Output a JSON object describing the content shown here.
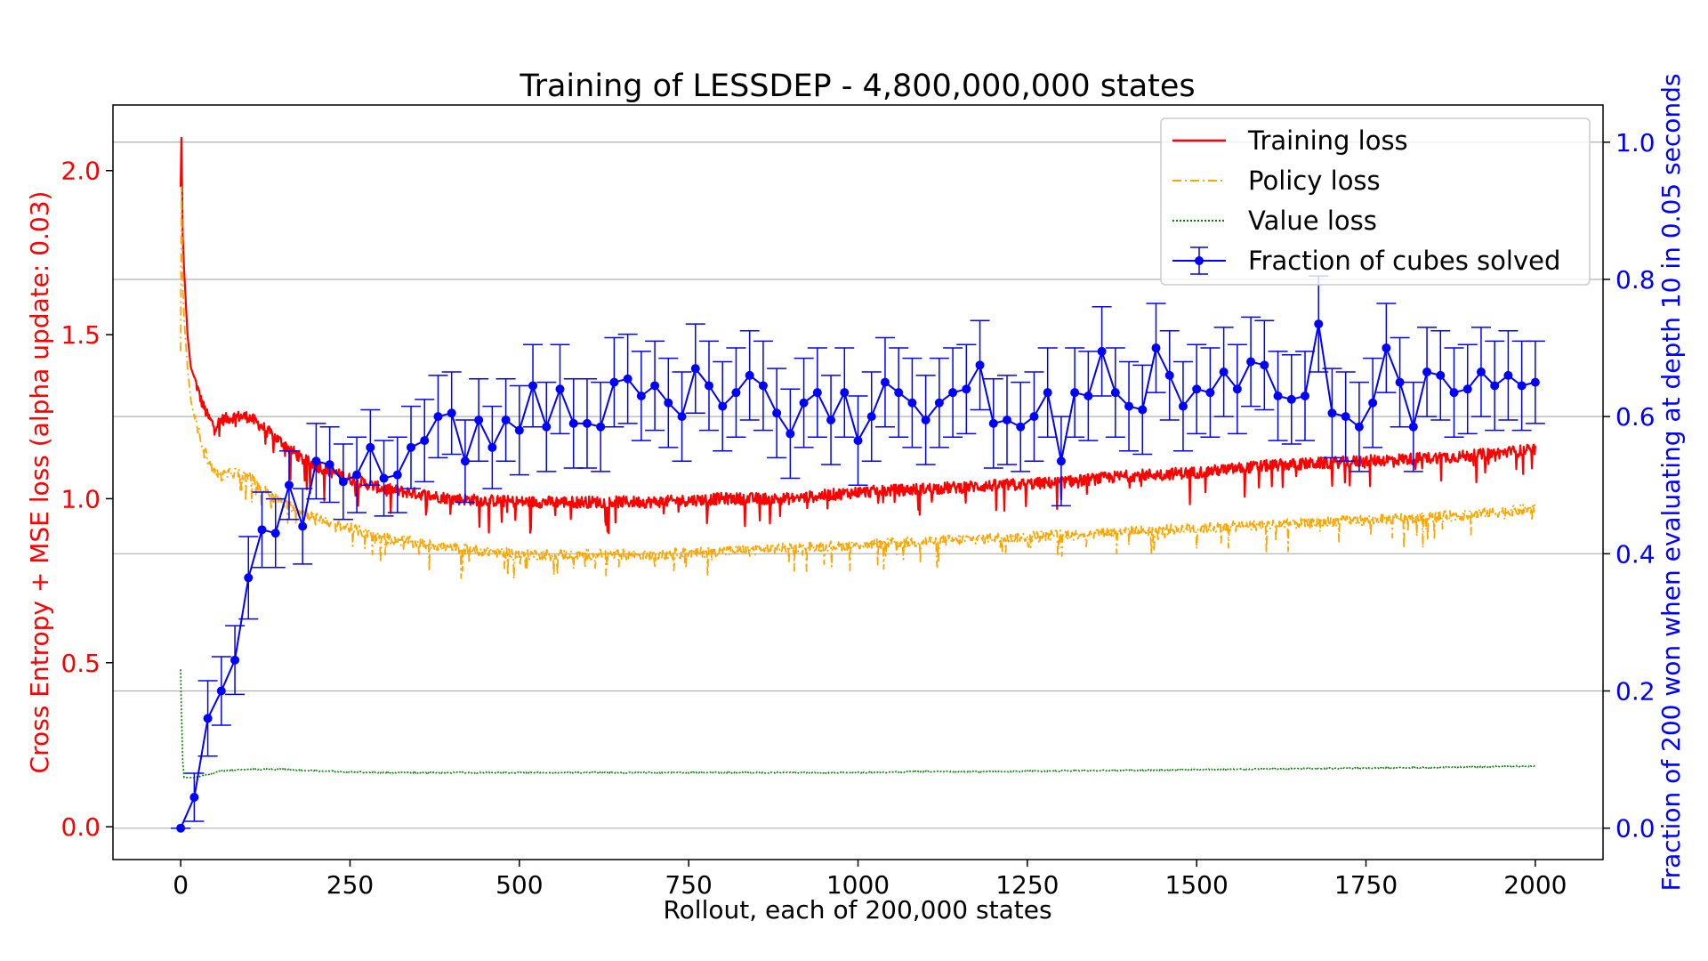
{
  "colors": {
    "training": "#ff0000",
    "policy": "#ffa500",
    "value": "#008000",
    "solved": "#0000ff",
    "grid": "#b0b0b0",
    "axis": "#000000"
  },
  "chart_data": {
    "type": "line",
    "title": "Training of LESSDEP - 4,800,000,000 states",
    "xlabel": "Rollout, each of 200,000 states",
    "ylabel_left": "Cross Entropy + MSE loss (alpha update: 0.03)",
    "ylabel_right": "Fraction of 200 won when evaluating at depth 10 in 0.05 seconds",
    "xlim": [
      -100,
      2100
    ],
    "ylim_left": [
      -0.1,
      2.2
    ],
    "ylim_right": [
      -0.0458,
      1.0542
    ],
    "xticks": [
      0,
      250,
      500,
      750,
      1000,
      1250,
      1500,
      1750,
      2000
    ],
    "xtick_labels": [
      "0",
      "250",
      "500",
      "750",
      "1000",
      "1250",
      "1500",
      "1750",
      "2000"
    ],
    "yticks_left": [
      0.0,
      0.5,
      1.0,
      1.5,
      2.0
    ],
    "ytick_labels_left": [
      "0.0",
      "0.5",
      "1.0",
      "1.5",
      "2.0"
    ],
    "yticks_right": [
      0.0,
      0.2,
      0.4,
      0.6,
      0.8,
      1.0
    ],
    "ytick_labels_right": [
      "0.0",
      "0.2",
      "0.4",
      "0.6",
      "0.8",
      "1.0"
    ],
    "grid": "horizontal (right axis)",
    "legend_position": "top-right",
    "legend": [
      "Training loss",
      "Policy loss",
      "Value loss",
      "Fraction of cubes solved"
    ],
    "loss_series": [
      {
        "name": "Training loss",
        "color": "#ff0000",
        "style": "solid",
        "x": [
          0,
          1,
          3,
          5,
          10,
          15,
          20,
          30,
          40,
          50,
          60,
          80,
          100,
          120,
          150,
          180,
          200,
          250,
          300,
          400,
          500,
          600,
          700,
          800,
          900,
          1000,
          1100,
          1200,
          1300,
          1400,
          1500,
          1600,
          1700,
          1800,
          1900,
          2000
        ],
        "y": [
          1.95,
          2.1,
          1.8,
          1.7,
          1.5,
          1.4,
          1.37,
          1.3,
          1.25,
          1.22,
          1.24,
          1.25,
          1.25,
          1.22,
          1.17,
          1.12,
          1.1,
          1.06,
          1.03,
          1.0,
          0.99,
          0.99,
          0.99,
          1.0,
          1.0,
          1.02,
          1.03,
          1.04,
          1.05,
          1.07,
          1.08,
          1.1,
          1.11,
          1.12,
          1.13,
          1.15
        ]
      },
      {
        "name": "Policy loss",
        "color": "#ffa500",
        "style": "dashdot",
        "x": [
          0,
          1,
          3,
          5,
          10,
          15,
          20,
          30,
          40,
          50,
          60,
          80,
          100,
          120,
          150,
          180,
          200,
          250,
          300,
          400,
          500,
          600,
          700,
          800,
          900,
          1000,
          1100,
          1200,
          1300,
          1400,
          1500,
          1600,
          1700,
          1800,
          1900,
          2000
        ],
        "y": [
          1.45,
          1.95,
          1.65,
          1.55,
          1.4,
          1.3,
          1.25,
          1.18,
          1.12,
          1.08,
          1.07,
          1.08,
          1.07,
          1.03,
          0.99,
          0.96,
          0.94,
          0.91,
          0.88,
          0.85,
          0.83,
          0.83,
          0.83,
          0.84,
          0.85,
          0.86,
          0.87,
          0.88,
          0.89,
          0.9,
          0.91,
          0.92,
          0.93,
          0.94,
          0.95,
          0.97
        ]
      },
      {
        "name": "Value loss",
        "color": "#008000",
        "style": "dotted",
        "x": [
          0,
          1,
          3,
          5,
          10,
          20,
          40,
          60,
          100,
          150,
          200,
          300,
          400,
          500,
          600,
          700,
          800,
          900,
          1000,
          1100,
          1200,
          1300,
          1400,
          1500,
          1600,
          1700,
          1800,
          1900,
          2000
        ],
        "y": [
          0.48,
          0.35,
          0.2,
          0.15,
          0.15,
          0.15,
          0.16,
          0.17,
          0.175,
          0.175,
          0.17,
          0.165,
          0.165,
          0.165,
          0.165,
          0.165,
          0.165,
          0.165,
          0.165,
          0.168,
          0.168,
          0.17,
          0.172,
          0.174,
          0.176,
          0.178,
          0.18,
          0.182,
          0.185
        ]
      }
    ],
    "solved_series": {
      "name": "Fraction of cubes solved",
      "color": "#0000ff",
      "x": [
        0,
        20,
        40,
        60,
        80,
        100,
        120,
        140,
        160,
        180,
        200,
        220,
        240,
        260,
        280,
        300,
        320,
        340,
        360,
        380,
        400,
        420,
        440,
        460,
        480,
        500,
        520,
        540,
        560,
        580,
        600,
        620,
        640,
        660,
        680,
        700,
        720,
        740,
        760,
        780,
        800,
        820,
        840,
        860,
        880,
        900,
        920,
        940,
        960,
        980,
        1000,
        1020,
        1040,
        1060,
        1080,
        1100,
        1120,
        1140,
        1160,
        1180,
        1200,
        1220,
        1240,
        1260,
        1280,
        1300,
        1320,
        1340,
        1360,
        1380,
        1400,
        1420,
        1440,
        1460,
        1480,
        1500,
        1520,
        1540,
        1560,
        1580,
        1600,
        1620,
        1640,
        1660,
        1680,
        1700,
        1720,
        1740,
        1760,
        1780,
        1800,
        1820,
        1840,
        1860,
        1880,
        1900,
        1920,
        1940,
        1960,
        1980,
        2000
      ],
      "y": [
        0.0,
        0.045,
        0.16,
        0.2,
        0.245,
        0.365,
        0.435,
        0.43,
        0.5,
        0.44,
        0.535,
        0.53,
        0.505,
        0.515,
        0.555,
        0.51,
        0.515,
        0.555,
        0.565,
        0.6,
        0.605,
        0.535,
        0.595,
        0.555,
        0.595,
        0.58,
        0.645,
        0.585,
        0.64,
        0.59,
        0.59,
        0.585,
        0.65,
        0.655,
        0.63,
        0.645,
        0.62,
        0.6,
        0.67,
        0.645,
        0.615,
        0.635,
        0.66,
        0.645,
        0.605,
        0.575,
        0.62,
        0.635,
        0.595,
        0.635,
        0.565,
        0.6,
        0.65,
        0.635,
        0.62,
        0.595,
        0.62,
        0.635,
        0.64,
        0.675,
        0.59,
        0.595,
        0.585,
        0.6,
        0.635,
        0.535,
        0.635,
        0.63,
        0.695,
        0.635,
        0.615,
        0.61,
        0.7,
        0.66,
        0.615,
        0.64,
        0.635,
        0.665,
        0.64,
        0.68,
        0.675,
        0.63,
        0.625,
        0.63,
        0.735,
        0.605,
        0.6,
        0.585,
        0.62,
        0.7,
        0.65,
        0.585,
        0.665,
        0.66,
        0.635,
        0.64,
        0.665,
        0.645,
        0.66,
        0.645,
        0.65
      ],
      "yerr": [
        0.0,
        0.035,
        0.055,
        0.05,
        0.05,
        0.06,
        0.055,
        0.05,
        0.05,
        0.055,
        0.055,
        0.055,
        0.055,
        0.055,
        0.055,
        0.055,
        0.055,
        0.06,
        0.06,
        0.06,
        0.06,
        0.06,
        0.06,
        0.06,
        0.06,
        0.065,
        0.06,
        0.065,
        0.065,
        0.065,
        0.065,
        0.065,
        0.065,
        0.065,
        0.065,
        0.065,
        0.065,
        0.065,
        0.065,
        0.065,
        0.065,
        0.065,
        0.065,
        0.065,
        0.065,
        0.065,
        0.065,
        0.065,
        0.065,
        0.065,
        0.065,
        0.065,
        0.065,
        0.065,
        0.065,
        0.065,
        0.065,
        0.065,
        0.065,
        0.065,
        0.065,
        0.065,
        0.065,
        0.065,
        0.065,
        0.065,
        0.065,
        0.065,
        0.065,
        0.065,
        0.065,
        0.065,
        0.065,
        0.065,
        0.065,
        0.065,
        0.065,
        0.065,
        0.065,
        0.065,
        0.065,
        0.065,
        0.065,
        0.065,
        0.07,
        0.065,
        0.065,
        0.065,
        0.065,
        0.065,
        0.065,
        0.065,
        0.065,
        0.065,
        0.065,
        0.065,
        0.065,
        0.065,
        0.065,
        0.065,
        0.06
      ]
    }
  }
}
